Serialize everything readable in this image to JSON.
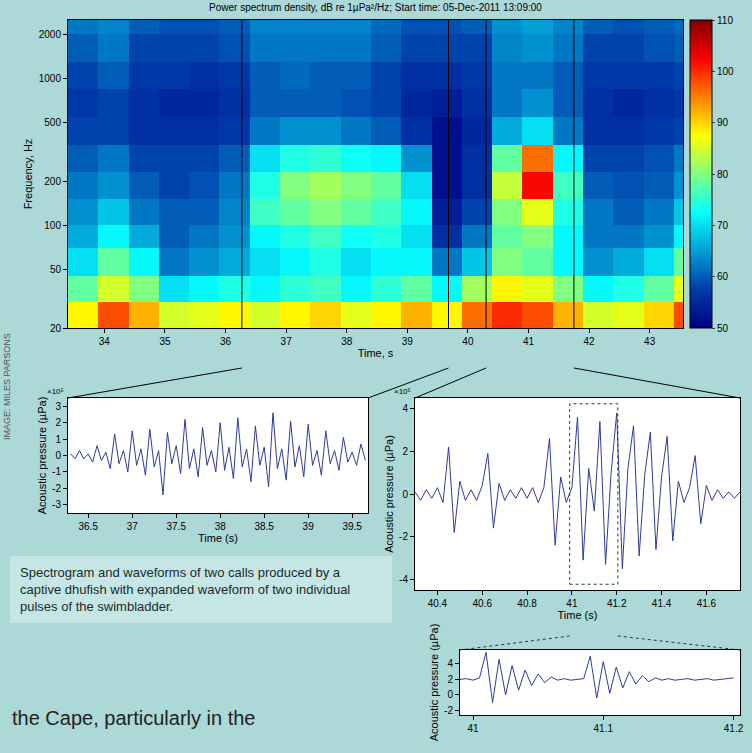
{
  "chart_data": [
    {
      "type": "heatmap",
      "title": "Power spectrum density, dB re 1µPa²/Hz; Start time: 05-Dec-2011 13:09:00",
      "x_label": "Time, s",
      "y_label": "Frequency, Hz",
      "x": [
        33.4,
        33.9,
        34.4,
        34.9,
        35.4,
        35.9,
        36.4,
        36.9,
        37.4,
        37.9,
        38.4,
        38.9,
        39.4,
        39.9,
        40.4,
        40.9,
        41.4,
        41.9,
        42.4,
        42.9,
        43.4,
        43.55
      ],
      "y": [
        20,
        30,
        45,
        70,
        100,
        150,
        230,
        350,
        550,
        850,
        1300,
        2000,
        2500
      ],
      "z": [
        [
          88,
          98,
          92,
          85,
          86,
          88,
          85,
          88,
          90,
          86,
          88,
          92,
          88,
          96,
          100,
          98,
          92,
          85,
          86,
          90,
          98
        ],
        [
          78,
          85,
          80,
          70,
          72,
          74,
          72,
          75,
          76,
          72,
          75,
          78,
          72,
          82,
          88,
          86,
          80,
          72,
          74,
          78,
          86
        ],
        [
          70,
          78,
          72,
          62,
          64,
          66,
          70,
          72,
          74,
          70,
          72,
          72,
          62,
          68,
          80,
          78,
          72,
          64,
          66,
          70,
          78
        ],
        [
          66,
          72,
          66,
          60,
          62,
          64,
          72,
          74,
          76,
          73,
          74,
          70,
          56,
          62,
          78,
          80,
          72,
          62,
          62,
          64,
          72
        ],
        [
          64,
          68,
          62,
          60,
          60,
          63,
          76,
          78,
          80,
          78,
          76,
          72,
          54,
          58,
          80,
          86,
          74,
          62,
          60,
          62,
          68
        ],
        [
          62,
          64,
          60,
          58,
          59,
          62,
          74,
          80,
          82,
          80,
          78,
          70,
          52,
          56,
          84,
          102,
          76,
          60,
          59,
          60,
          64
        ],
        [
          60,
          62,
          58,
          58,
          58,
          60,
          70,
          74,
          75,
          73,
          72,
          64,
          52,
          56,
          78,
          96,
          72,
          58,
          58,
          59,
          62
        ],
        [
          58,
          58,
          56,
          56,
          56,
          57,
          62,
          64,
          64,
          62,
          60,
          56,
          52,
          55,
          66,
          70,
          62,
          56,
          56,
          57,
          58
        ],
        [
          57,
          58,
          56,
          55,
          55,
          56,
          60,
          60,
          60,
          59,
          58,
          55,
          54,
          56,
          62,
          64,
          60,
          56,
          55,
          56,
          57
        ],
        [
          58,
          60,
          57,
          57,
          56,
          57,
          60,
          61,
          60,
          60,
          58,
          56,
          56,
          57,
          62,
          62,
          60,
          57,
          57,
          57,
          58
        ],
        [
          60,
          62,
          58,
          58,
          58,
          59,
          62,
          62,
          62,
          62,
          60,
          58,
          58,
          58,
          63,
          64,
          62,
          58,
          58,
          59,
          60
        ],
        [
          62,
          63,
          60,
          59,
          59,
          60,
          63,
          63,
          63,
          63,
          61,
          59,
          59,
          60,
          64,
          65,
          63,
          60,
          59,
          60,
          61
        ]
      ],
      "xlim": [
        33.4,
        43.55
      ],
      "xticks": [
        34,
        35,
        36,
        37,
        38,
        39,
        40,
        41,
        42,
        43
      ],
      "ylim": [
        20,
        2500
      ],
      "yticks": [
        20,
        50,
        100,
        200,
        500,
        1000,
        2000
      ],
      "log": "y",
      "grid": false,
      "colorbar_range": [
        50,
        110
      ],
      "colorbar_ticks": [
        50,
        60,
        70,
        80,
        90,
        100,
        110
      ]
    },
    {
      "type": "line",
      "x_label": "Time (s)",
      "y_label": "Acoustic pressure (µPa)",
      "annotation": "×10⁵",
      "x": [
        36.3,
        36.35,
        36.4,
        36.45,
        36.5,
        36.55,
        36.6,
        36.65,
        36.7,
        36.75,
        36.8,
        36.85,
        36.9,
        36.95,
        37,
        37.05,
        37.1,
        37.15,
        37.2,
        37.25,
        37.3,
        37.35,
        37.4,
        37.45,
        37.5,
        37.55,
        37.6,
        37.65,
        37.7,
        37.75,
        37.8,
        37.85,
        37.9,
        37.95,
        38,
        38.05,
        38.1,
        38.15,
        38.2,
        38.25,
        38.3,
        38.35,
        38.4,
        38.45,
        38.5,
        38.55,
        38.6,
        38.65,
        38.7,
        38.75,
        38.8,
        38.85,
        38.9,
        38.95,
        39,
        39.05,
        39.1,
        39.15,
        39.2,
        39.25,
        39.3,
        39.35,
        39.4,
        39.45,
        39.5,
        39.55,
        39.6,
        39.65
      ],
      "values": [
        0.1,
        -0.2,
        0.3,
        -0.2,
        0.1,
        -0.4,
        0.6,
        -0.3,
        0.2,
        -0.8,
        1.3,
        -0.5,
        0.3,
        -1.0,
        1.5,
        -0.6,
        0.4,
        -1.2,
        1.6,
        -0.7,
        0.3,
        -2.4,
        1.4,
        -0.5,
        0.6,
        -1.1,
        2.2,
        -0.8,
        0.4,
        -1.3,
        1.7,
        -0.6,
        0.3,
        -1.0,
        2.0,
        -0.9,
        0.5,
        -1.4,
        2.3,
        -0.7,
        0.4,
        -1.6,
        1.8,
        -0.6,
        0.5,
        -1.9,
        2.6,
        -0.8,
        0.4,
        -1.5,
        2.1,
        -0.7,
        0.6,
        -1.3,
        1.9,
        -0.6,
        0.3,
        -1.2,
        1.5,
        -0.5,
        0.3,
        -0.9,
        1.1,
        -0.4,
        0.2,
        -0.6,
        0.7,
        -0.3
      ],
      "color": "#2e3b9e",
      "xlim": [
        36.27,
        39.68
      ],
      "xticks": [
        36.5,
        37,
        37.5,
        38,
        38.5,
        39,
        39.5
      ],
      "ylim": [
        -3.5,
        3.5
      ],
      "yticks": [
        -3,
        -2,
        -1,
        0,
        1,
        2,
        3
      ],
      "grid": false
    },
    {
      "type": "line",
      "x_label": "Time (s)",
      "y_label": "Acoustic pressure (µPa)",
      "annotation": "×10⁵",
      "x": [
        40.3,
        40.325,
        40.35,
        40.375,
        40.4,
        40.425,
        40.45,
        40.475,
        40.5,
        40.525,
        40.55,
        40.575,
        40.6,
        40.625,
        40.65,
        40.675,
        40.7,
        40.725,
        40.75,
        40.775,
        40.8,
        40.825,
        40.85,
        40.875,
        40.9,
        40.925,
        40.95,
        40.975,
        41,
        41.025,
        41.05,
        41.075,
        41.1,
        41.125,
        41.15,
        41.175,
        41.2,
        41.225,
        41.25,
        41.275,
        41.3,
        41.325,
        41.35,
        41.375,
        41.4,
        41.425,
        41.45,
        41.475,
        41.5,
        41.525,
        41.55,
        41.575,
        41.6,
        41.625,
        41.65,
        41.675,
        41.7,
        41.725,
        41.75
      ],
      "values": [
        0.1,
        -0.3,
        0.2,
        -0.2,
        0.3,
        -0.4,
        2.2,
        -1.8,
        0.6,
        -0.3,
        0.2,
        -0.3,
        0.4,
        1.9,
        -1.6,
        0.5,
        -0.3,
        0.2,
        -0.2,
        0.3,
        -0.2,
        0.3,
        -0.4,
        0.3,
        2.6,
        -2.4,
        0.8,
        -0.4,
        0.3,
        3.6,
        -3.1,
        1.2,
        -0.8,
        3.4,
        -3.3,
        1.0,
        3.8,
        -3.5,
        1.2,
        3.2,
        -2.9,
        0.9,
        2.9,
        -2.6,
        0.8,
        2.7,
        -2.2,
        0.6,
        -0.4,
        0.3,
        1.8,
        -1.4,
        0.4,
        -0.3,
        0.2,
        -0.2,
        0.1,
        -0.2,
        0.1
      ],
      "color": "#2e3b9e",
      "xlim": [
        40.3,
        41.75
      ],
      "xticks": [
        40.4,
        40.6,
        40.8,
        41,
        41.2,
        41.4,
        41.6
      ],
      "ylim": [
        -4.5,
        4.5
      ],
      "yticks": [
        -4,
        -2,
        0,
        2,
        4
      ],
      "grid": false
    },
    {
      "type": "line",
      "y_label": "Acoustic pressure (µPa)",
      "x": [
        40.99,
        40.995,
        41,
        41.005,
        41.01,
        41.015,
        41.02,
        41.025,
        41.03,
        41.035,
        41.04,
        41.045,
        41.05,
        41.055,
        41.06,
        41.065,
        41.07,
        41.075,
        41.08,
        41.085,
        41.09,
        41.095,
        41.1,
        41.105,
        41.11,
        41.115,
        41.12,
        41.125,
        41.13,
        41.135,
        41.14,
        41.145,
        41.15,
        41.155,
        41.16,
        41.165,
        41.17,
        41.175,
        41.18,
        41.185,
        41.19,
        41.195,
        41.2
      ],
      "values": [
        2.0,
        2.1,
        1.9,
        2.2,
        5.5,
        -1.0,
        4.6,
        0.0,
        3.8,
        0.6,
        3.2,
        1.2,
        2.7,
        1.6,
        2.3,
        1.9,
        2.1,
        1.9,
        2.0,
        2.1,
        5.0,
        -0.4,
        4.3,
        0.2,
        3.6,
        0.9,
        3.0,
        1.4,
        2.5,
        1.7,
        2.2,
        1.9,
        2.1,
        1.9,
        2.0,
        2.1,
        1.9,
        2.0,
        2.1,
        1.9,
        2.0,
        2.1,
        2.2
      ],
      "color": "#2e3b9e",
      "xlim": [
        40.99,
        41.205
      ],
      "xticks": [
        41,
        41.1,
        41.2
      ],
      "ylim": [
        -2.6,
        5.8
      ],
      "yticks": [
        -2,
        0,
        2,
        4
      ],
      "grid": false
    }
  ],
  "page": {
    "caption": "Spectrogram and waveforms of two calls produced by a captive dhufish with expanded waveform of two individual pulses of the swimbladder.",
    "body_text": "the Cape, particularly in the",
    "credit": "IMAGE: MILES PARSONS"
  }
}
